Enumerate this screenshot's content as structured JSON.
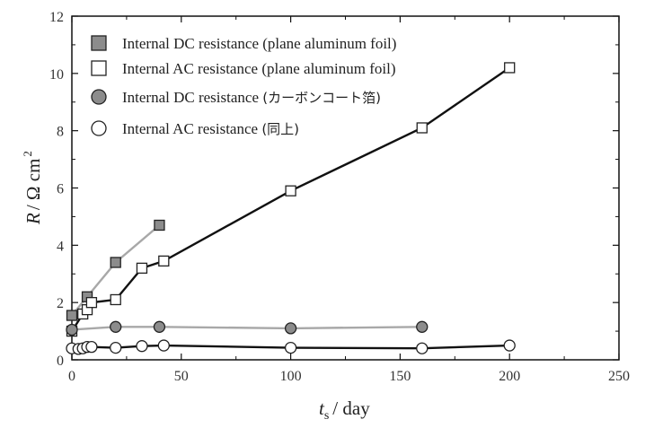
{
  "chart_data": {
    "type": "scatter",
    "xlabel_main": "t",
    "xlabel_sub": "s",
    "xlabel_unit": "/ day",
    "ylabel_main": "R",
    "ylabel_unit": "/ Ω cm",
    "ylabel_sup": "2",
    "xlim": [
      0,
      250
    ],
    "ylim": [
      0,
      12
    ],
    "x_ticks": [
      0,
      50,
      100,
      150,
      200,
      250
    ],
    "y_ticks": [
      0,
      2,
      4,
      6,
      8,
      10,
      12
    ],
    "grid": false,
    "legend_position": "top-left",
    "legend": [
      {
        "main": "Internal DC resistance",
        "paren": "(plane aluminum foil)"
      },
      {
        "main": "Internal AC resistance",
        "paren": "(plane aluminum foil)"
      },
      {
        "main": "Internal DC resistance",
        "paren": "(カーボンコート箔)"
      },
      {
        "main": "Internal AC resistance",
        "paren": "(同上)"
      }
    ],
    "series": [
      {
        "marker": "square",
        "fill": "#8c8c8c",
        "line": "#a8a8a8",
        "x": [
          0,
          7,
          20,
          40
        ],
        "y": [
          1.55,
          2.2,
          3.4,
          4.7
        ]
      },
      {
        "marker": "square",
        "fill": "#ffffff",
        "line": "#111111",
        "x": [
          0,
          5,
          7,
          9,
          20,
          32,
          42,
          100,
          160,
          200
        ],
        "y": [
          1.0,
          1.6,
          1.75,
          2.0,
          2.1,
          3.2,
          3.45,
          5.9,
          8.1,
          10.2
        ]
      },
      {
        "marker": "circle",
        "fill": "#8c8c8c",
        "line": "#a8a8a8",
        "x": [
          0,
          20,
          40,
          100,
          160
        ],
        "y": [
          1.05,
          1.15,
          1.15,
          1.1,
          1.15
        ]
      },
      {
        "marker": "circle",
        "fill": "#ffffff",
        "line": "#111111",
        "x": [
          0,
          3,
          5,
          7,
          9,
          20,
          32,
          42,
          100,
          160,
          200
        ],
        "y": [
          0.4,
          0.38,
          0.4,
          0.45,
          0.45,
          0.42,
          0.48,
          0.5,
          0.42,
          0.4,
          0.5
        ]
      }
    ]
  }
}
